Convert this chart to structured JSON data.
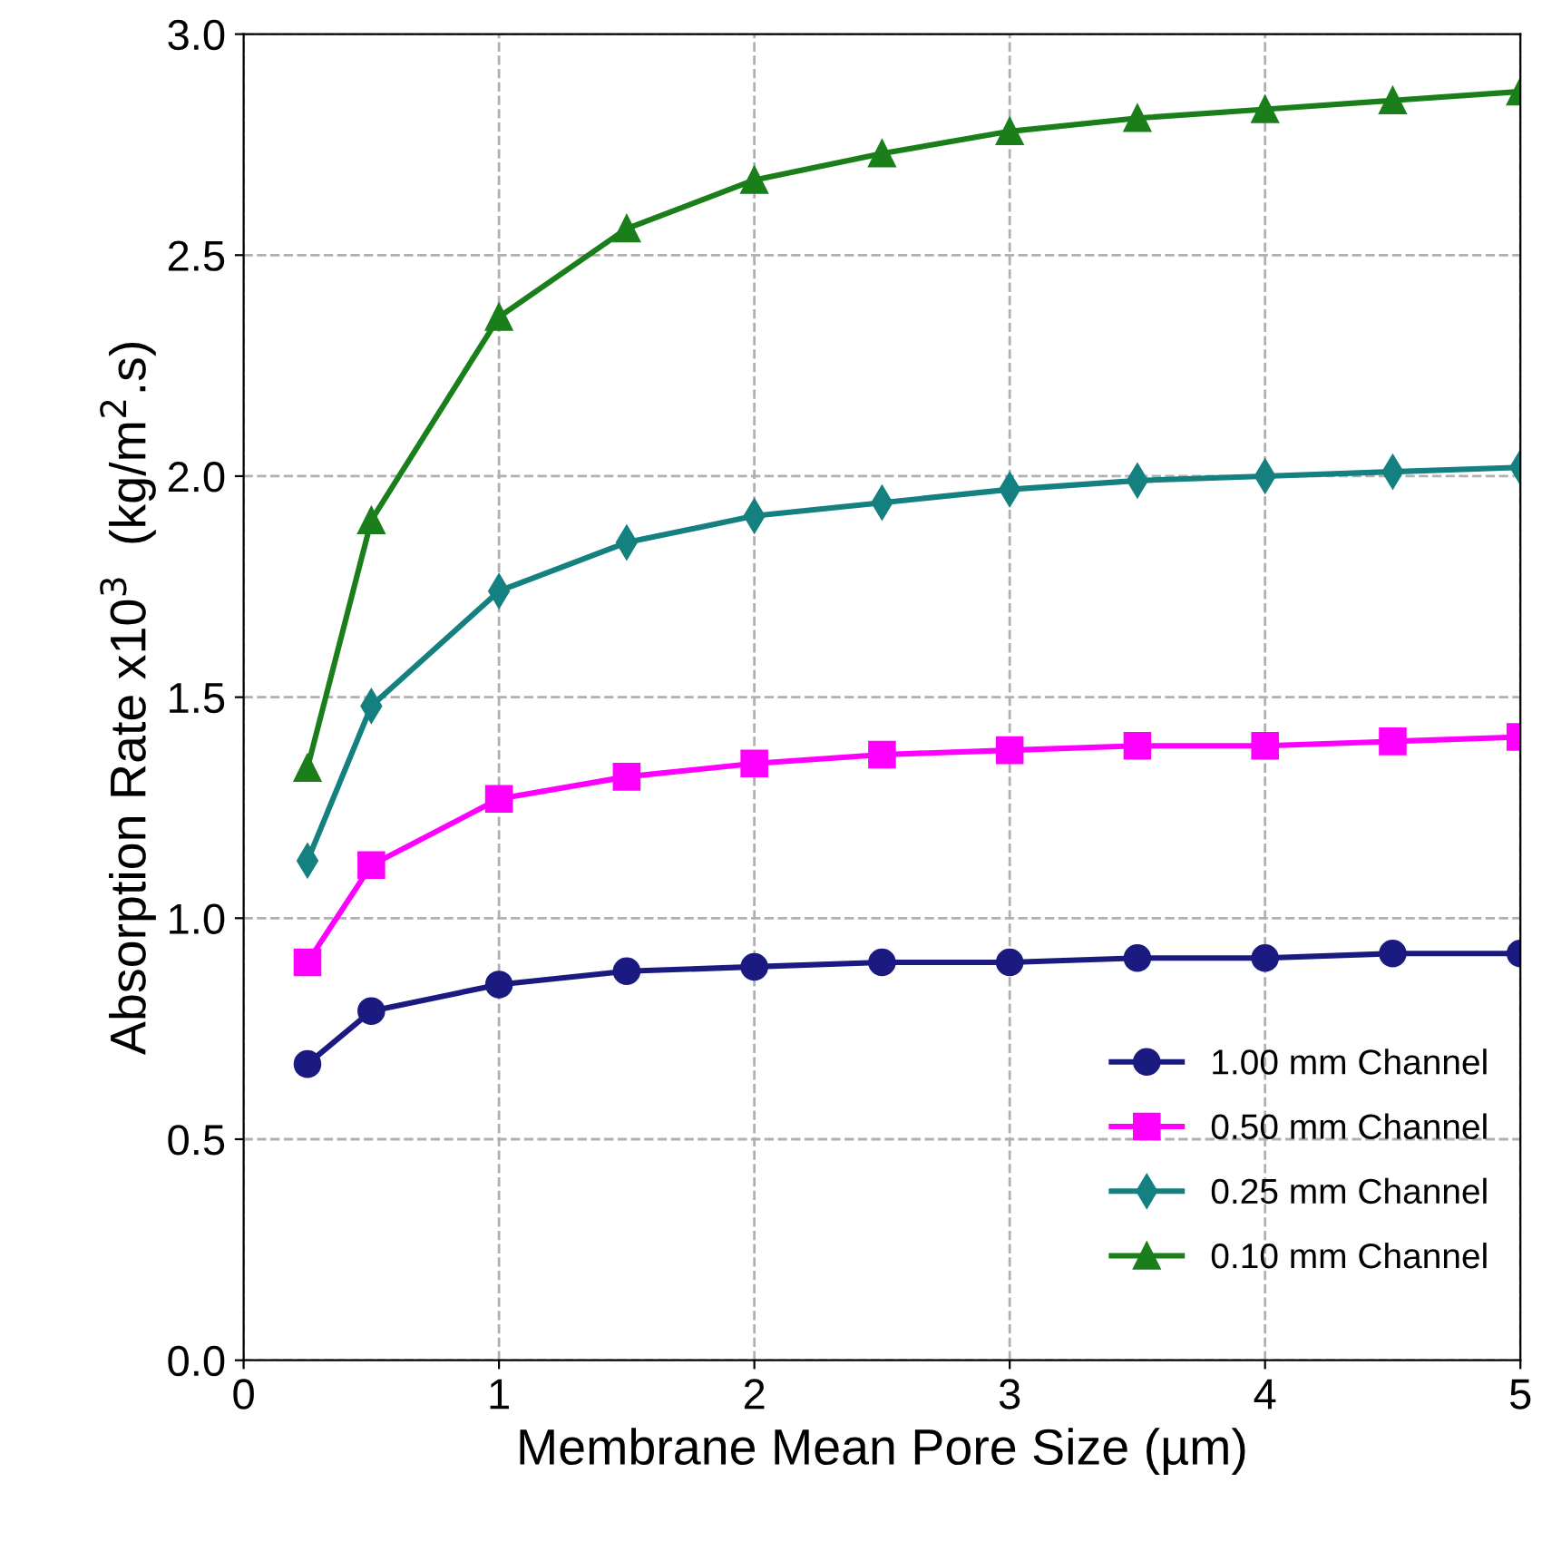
{
  "chart_data": {
    "type": "line",
    "xlabel": "Membrane Mean Pore Size (µm)",
    "ylabel": "Absorption Rate x10$^{3}$  (kg/m$^{2}$.s)",
    "x": [
      0.25,
      0.5,
      1,
      1.5,
      2,
      2.5,
      3,
      3.5,
      4,
      4.5,
      5
    ],
    "series": [
      {
        "name": "1.00 mm Channel",
        "color": "#1a1a80",
        "marker": "circle",
        "values": [
          0.67,
          0.79,
          0.85,
          0.88,
          0.89,
          0.9,
          0.9,
          0.91,
          0.91,
          0.92,
          0.92
        ]
      },
      {
        "name": "0.50 mm Channel",
        "color": "#ff00ff",
        "marker": "square",
        "values": [
          0.9,
          1.12,
          1.27,
          1.32,
          1.35,
          1.37,
          1.38,
          1.39,
          1.39,
          1.4,
          1.41
        ]
      },
      {
        "name": "0.25 mm Channel",
        "color": "#148080",
        "marker": "diamond",
        "values": [
          1.13,
          1.48,
          1.74,
          1.85,
          1.91,
          1.94,
          1.97,
          1.99,
          2.0,
          2.01,
          2.02
        ]
      },
      {
        "name": "0.10 mm Channel",
        "color": "#1a7f1a",
        "marker": "triangle",
        "values": [
          1.34,
          1.9,
          2.36,
          2.56,
          2.67,
          2.73,
          2.78,
          2.81,
          2.83,
          2.85,
          2.87
        ]
      }
    ],
    "xlim": [
      0,
      5
    ],
    "xticks": [
      0,
      1,
      2,
      3,
      4,
      5
    ],
    "ylim": [
      0,
      3
    ],
    "yticks": [
      {
        "value": 0,
        "label": "0.0"
      },
      {
        "value": 0.5,
        "label": "0.5"
      },
      {
        "value": 1,
        "label": "1.0"
      },
      {
        "value": 1.5,
        "label": "1.5"
      },
      {
        "value": 2,
        "label": "2.0"
      },
      {
        "value": 2.5,
        "label": "2.5"
      },
      {
        "value": 3,
        "label": "3.0"
      }
    ],
    "grid": true,
    "legend": "bottom right",
    "line_style": "solid"
  }
}
